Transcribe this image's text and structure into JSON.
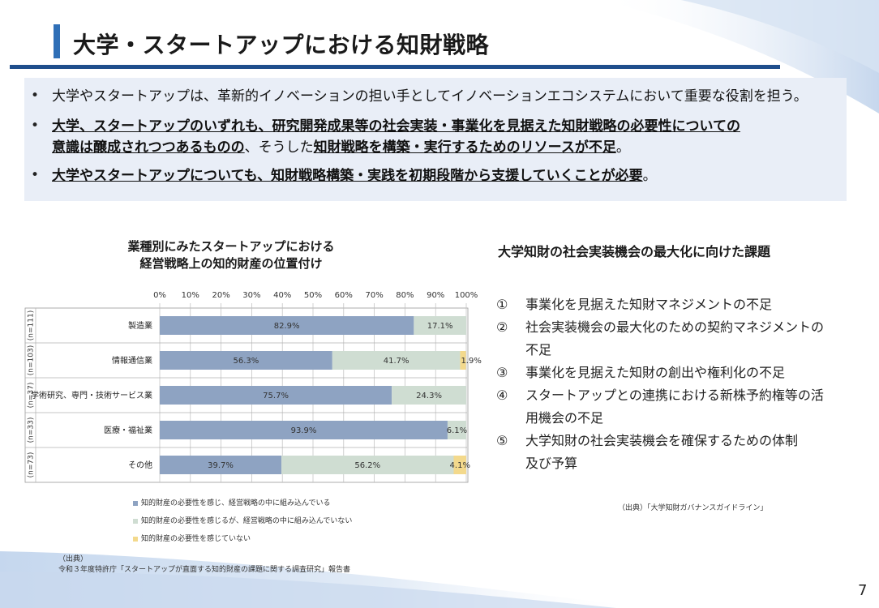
{
  "header": {
    "title": "大学・スタートアップにおける知財戦略"
  },
  "summary": {
    "bullet_glyph": "•",
    "items": [
      {
        "lines": [
          [
            {
              "t": "大学やスタートアップは、革新的イノベーションの担い手としてイノベーションエコシステムにおいて重要な役割を担う。",
              "b": false
            }
          ]
        ]
      },
      {
        "lines": [
          [
            {
              "t": "大学、スタートアップのいずれも、研究開発成果等の社会実装・事業化を見据えた知財戦略の必要性についての",
              "b": true
            }
          ],
          [
            {
              "t": "意識は醸成されつつあるものの",
              "b": true
            },
            {
              "t": "、そうした",
              "b": false
            },
            {
              "t": "知財戦略を構築・実行するためのリソースが不足",
              "b": true
            },
            {
              "t": "。",
              "b": false
            }
          ]
        ]
      },
      {
        "lines": [
          [
            {
              "t": "大学やスタートアップについても、知財戦略構築・実践を初期段階から支援していくことが必要",
              "b": true
            },
            {
              "t": "。",
              "b": false
            }
          ]
        ]
      }
    ]
  },
  "chart": {
    "title_line1": "業種別にみたスタートアップにおける",
    "title_line2": "経営戦略上の知的財産の位置付け",
    "source_label": "（出典）",
    "source_text": "令和３年度特許庁「スタートアップが直面する知的財産の課題に関する調査研究」報告書"
  },
  "chart_data": {
    "type": "bar",
    "orientation": "horizontal",
    "stacked": true,
    "x_ticks": [
      "0%",
      "10%",
      "20%",
      "30%",
      "40%",
      "50%",
      "60%",
      "70%",
      "80%",
      "90%",
      "100%"
    ],
    "xlim": [
      0,
      100
    ],
    "categories": [
      "製造業",
      "情報通信業",
      "学術研究、専門・技術サービス業",
      "医療・福祉業",
      "その他"
    ],
    "n_labels": [
      "(n=111)",
      "(n=103)",
      "(n=37)",
      "(n=33)",
      "(n=73)"
    ],
    "series": [
      {
        "name": "知的財産の必要性を感じ、経営戦略の中に組み込んでいる",
        "color": "#8ea3c2",
        "values": [
          82.9,
          56.3,
          75.7,
          93.9,
          39.7
        ],
        "labels": [
          "82.9%",
          "56.3%",
          "75.7%",
          "93.9%",
          "39.7%"
        ]
      },
      {
        "name": "知的財産の必要性を感じるが、経営戦略の中に組み込んでいない",
        "color": "#cfddd2",
        "values": [
          17.1,
          41.7,
          24.3,
          6.1,
          56.2
        ],
        "labels": [
          "17.1%",
          "41.7%",
          "24.3%",
          "6.1%",
          "56.2%"
        ]
      },
      {
        "name": "知的財産の必要性を感じていない",
        "color": "#f3d98c",
        "values": [
          0,
          1.9,
          0,
          0,
          4.1
        ],
        "labels": [
          "",
          "1.9%",
          "",
          "",
          "4.1%"
        ]
      }
    ],
    "legend_position": "bottom"
  },
  "issues": {
    "title": "大学知財の社会実装機会の最大化に向けた課題",
    "items": [
      {
        "num": "①",
        "lines": [
          "事業化を見据えた知財マネジメントの不足"
        ]
      },
      {
        "num": "②",
        "lines": [
          "社会実装機会の最大化のための契約マネジメントの",
          "不足"
        ]
      },
      {
        "num": "③",
        "lines": [
          "事業化を見据えた知財の創出や権利化の不足"
        ]
      },
      {
        "num": "④",
        "lines": [
          "スタートアップとの連携における新株予約権等の活",
          "用機会の不足"
        ]
      },
      {
        "num": "⑤",
        "lines": [
          "大学知財の社会実装機会を確保するための体制",
          "及び予算"
        ]
      }
    ],
    "source": "（出典）「大学知財ガバナンスガイドライン」"
  },
  "footer": {
    "page_number": "7"
  },
  "colors": {
    "accent": "#2f6fb7",
    "rule": "#1f4e8c",
    "summary_bg": "#e9eef7"
  }
}
